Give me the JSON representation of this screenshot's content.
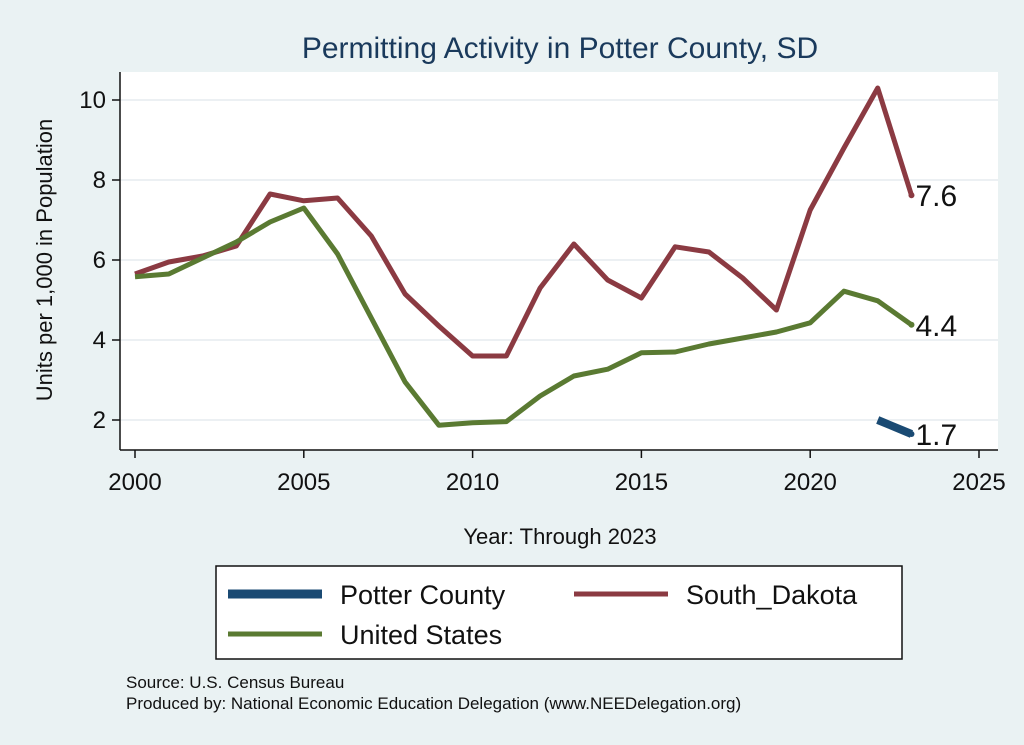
{
  "chart_data": {
    "type": "line",
    "title": "Permitting Activity in Potter County, SD",
    "xlabel": "Year: Through 2023",
    "ylabel": "Units per 1,000 in Population",
    "xlim": [
      2000,
      2025
    ],
    "ylim": [
      1.3,
      10.7
    ],
    "x_ticks": [
      "2000",
      "2005",
      "2010",
      "2015",
      "2020",
      "2025"
    ],
    "y_ticks": [
      "2",
      "4",
      "6",
      "8",
      "10"
    ],
    "grid": true,
    "legend_position": "bottom",
    "series": [
      {
        "name": "Potter County",
        "color": "#1a4a73",
        "x": [
          2022,
          2023
        ],
        "values": [
          2.0,
          1.65
        ],
        "end_label": "1.7"
      },
      {
        "name": "South_Dakota",
        "color": "#8b3a42",
        "x": [
          2000,
          2001,
          2002,
          2003,
          2004,
          2005,
          2006,
          2007,
          2008,
          2009,
          2010,
          2011,
          2012,
          2013,
          2014,
          2015,
          2016,
          2017,
          2018,
          2019,
          2020,
          2021,
          2022,
          2023
        ],
        "values": [
          5.65,
          5.95,
          6.1,
          6.35,
          7.65,
          7.48,
          7.55,
          6.6,
          5.15,
          4.35,
          3.6,
          3.6,
          5.3,
          6.4,
          5.5,
          5.05,
          6.33,
          6.2,
          5.55,
          4.75,
          7.25,
          8.8,
          10.3,
          7.62
        ],
        "end_label": "7.6"
      },
      {
        "name": "United States",
        "color": "#5a7a32",
        "x": [
          2000,
          2001,
          2002,
          2003,
          2004,
          2005,
          2006,
          2007,
          2008,
          2009,
          2010,
          2011,
          2012,
          2013,
          2014,
          2015,
          2016,
          2017,
          2018,
          2019,
          2020,
          2021,
          2022,
          2023
        ],
        "values": [
          5.58,
          5.65,
          6.05,
          6.45,
          6.95,
          7.3,
          6.15,
          4.55,
          2.95,
          1.87,
          1.93,
          1.96,
          2.6,
          3.1,
          3.27,
          3.68,
          3.7,
          3.9,
          4.05,
          4.2,
          4.43,
          5.22,
          4.98,
          4.38
        ],
        "end_label": "4.4"
      }
    ],
    "legend_items": [
      "Potter County",
      "South_Dakota",
      "United States"
    ]
  },
  "footer": {
    "source": "Source: U.S. Census Bureau",
    "produced_by": "Produced by: National Economic Education Delegation (www.NEEDelegation.org)"
  }
}
